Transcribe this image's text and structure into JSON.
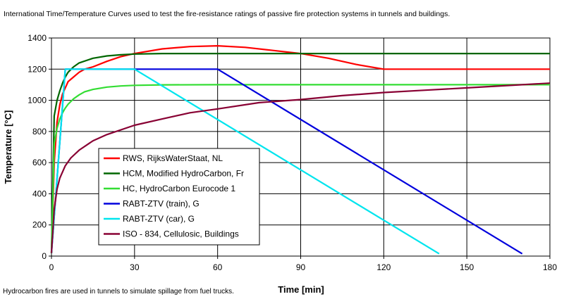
{
  "header": {
    "title": "International Time/Temperature Curves used to test the fire-resistance ratings of passive fire protection systems in tunnels and buildings."
  },
  "footer": {
    "note": "Hydrocarbon fires are used in tunnels to simulate spillage from fuel trucks."
  },
  "chart_data": {
    "type": "line",
    "title": "International Time/Temperature Curves used to test the fire-resistance ratings of passive fire protection systems in tunnels and buildings.",
    "xlabel": "Time [min]",
    "ylabel": "Temperature [°C]",
    "xlim": [
      0,
      180
    ],
    "ylim": [
      0,
      1400
    ],
    "xticks": [
      0,
      30,
      60,
      90,
      120,
      150,
      180
    ],
    "yticks": [
      0,
      200,
      400,
      600,
      800,
      1000,
      1200,
      1400
    ],
    "grid": true,
    "legend_position": "center-left",
    "series": [
      {
        "name": "RWS, RijksWaterStaat, NL",
        "color": "#ff0000",
        "x": [
          0,
          1,
          2,
          3,
          4,
          5,
          6,
          8,
          10,
          12,
          15,
          20,
          25,
          30,
          40,
          50,
          60,
          70,
          80,
          90,
          100,
          110,
          120,
          150,
          180
        ],
        "y": [
          20,
          600,
          860,
          970,
          1040,
          1080,
          1120,
          1150,
          1180,
          1200,
          1215,
          1250,
          1280,
          1300,
          1330,
          1345,
          1350,
          1340,
          1320,
          1300,
          1270,
          1230,
          1200,
          1200,
          1200
        ]
      },
      {
        "name": "HCM, Modified HydroCarbon, Fr",
        "color": "#006600",
        "x": [
          0,
          1,
          2,
          3,
          4,
          5,
          6,
          8,
          10,
          15,
          20,
          25,
          30,
          40,
          60,
          90,
          120,
          150,
          180
        ],
        "y": [
          20,
          900,
          1000,
          1060,
          1110,
          1150,
          1180,
          1215,
          1240,
          1270,
          1285,
          1292,
          1297,
          1300,
          1300,
          1300,
          1300,
          1300,
          1300
        ]
      },
      {
        "name": "HC, HydroCarbon Eurocode 1",
        "color": "#33dd33",
        "x": [
          0,
          1,
          2,
          3,
          4,
          5,
          6,
          8,
          10,
          12,
          15,
          20,
          25,
          30,
          40,
          60,
          90,
          120,
          150,
          180
        ],
        "y": [
          20,
          720,
          820,
          880,
          920,
          950,
          975,
          1010,
          1035,
          1055,
          1070,
          1085,
          1092,
          1096,
          1099,
          1100,
          1100,
          1100,
          1100,
          1100
        ]
      },
      {
        "name": "RABT-ZTV (train), G",
        "color": "#0000dd",
        "x": [
          0,
          5,
          60,
          170
        ],
        "y": [
          20,
          1200,
          1200,
          15
        ]
      },
      {
        "name": "RABT-ZTV (car), G",
        "color": "#00e5ee",
        "x": [
          0,
          5,
          30,
          140
        ],
        "y": [
          20,
          1200,
          1200,
          15
        ]
      },
      {
        "name": "ISO - 834, Cellulosic, Buildings",
        "color": "#880033",
        "x": [
          0,
          1,
          2,
          3,
          5,
          7,
          10,
          15,
          20,
          30,
          40,
          50,
          60,
          75,
          90,
          105,
          120,
          135,
          150,
          165,
          180
        ],
        "y": [
          20,
          300,
          430,
          500,
          580,
          630,
          680,
          740,
          780,
          840,
          880,
          920,
          945,
          985,
          1005,
          1030,
          1050,
          1065,
          1080,
          1095,
          1110
        ]
      }
    ]
  }
}
